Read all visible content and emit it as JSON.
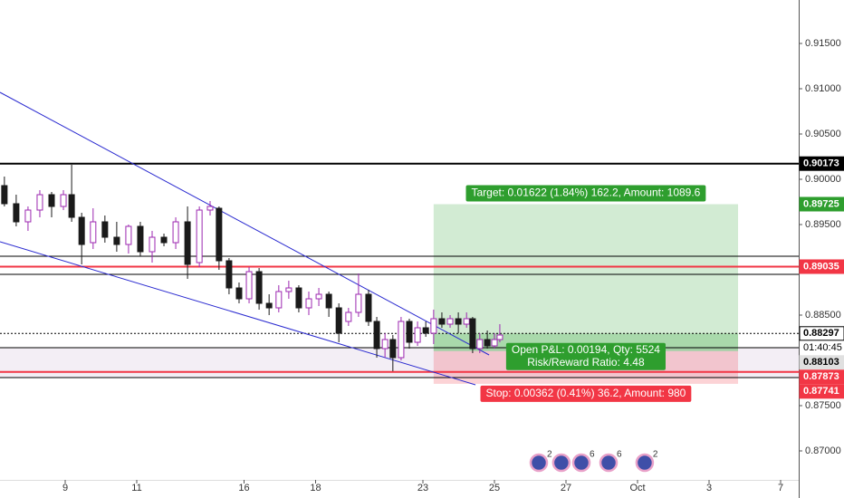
{
  "chart_data": {
    "type": "candlestick",
    "xlim": [
      -1.823,
      20.506
    ],
    "ylim": [
      0.8668,
      0.9198
    ],
    "xticks": [
      {
        "value": 0,
        "label": "9"
      },
      {
        "value": 2,
        "label": "11"
      },
      {
        "value": 5,
        "label": "16"
      },
      {
        "value": 7,
        "label": "18"
      },
      {
        "value": 10,
        "label": "23"
      },
      {
        "value": 12,
        "label": "25"
      },
      {
        "value": 14,
        "label": "27"
      },
      {
        "value": 16,
        "label": "Oct"
      },
      {
        "value": 18,
        "label": "3"
      },
      {
        "value": 20,
        "label": "7"
      }
    ],
    "yticks": [
      {
        "value": 0.87,
        "label": "0.87000"
      },
      {
        "value": 0.875,
        "label": "0.87500"
      },
      {
        "value": 0.885,
        "label": "0.88500"
      },
      {
        "value": 0.895,
        "label": "0.89500"
      },
      {
        "value": 0.9,
        "label": "0.90000"
      },
      {
        "value": 0.905,
        "label": "0.90500"
      },
      {
        "value": 0.91,
        "label": "0.91000"
      },
      {
        "value": 0.915,
        "label": "0.91500"
      }
    ],
    "up_color": "#ffffff",
    "up_border": "#9c27b0",
    "down_color": "#1a1a1a",
    "x": [
      -1.7,
      -1.37,
      -1.04,
      -0.71,
      -0.38,
      -0.05,
      0.18,
      0.46,
      0.78,
      1.11,
      1.44,
      1.77,
      2.1,
      2.43,
      2.76,
      3.09,
      3.42,
      3.75,
      4.05,
      4.3,
      4.58,
      4.86,
      5.14,
      5.42,
      5.7,
      5.97,
      6.25,
      6.53,
      6.81,
      7.09,
      7.37,
      7.65,
      7.92,
      8.2,
      8.48,
      8.71,
      8.94,
      9.16,
      9.39,
      9.62,
      9.85,
      10.08,
      10.3,
      10.53,
      10.76,
      10.99,
      11.22,
      11.39,
      11.59,
      11.8,
      12.0,
      12.15
    ],
    "open": [
      0.8993,
      0.8973,
      0.8953,
      0.8966,
      0.8983,
      0.897,
      0.8983,
      0.8958,
      0.893,
      0.8953,
      0.8936,
      0.8928,
      0.8948,
      0.892,
      0.8936,
      0.893,
      0.8953,
      0.8908,
      0.8966,
      0.8968,
      0.891,
      0.888,
      0.8868,
      0.8898,
      0.8863,
      0.8858,
      0.8876,
      0.888,
      0.8858,
      0.8868,
      0.8873,
      0.8858,
      0.8843,
      0.8853,
      0.8873,
      0.8843,
      0.8813,
      0.8823,
      0.8803,
      0.8843,
      0.882,
      0.8836,
      0.883,
      0.8846,
      0.884,
      0.8846,
      0.884,
      0.8846,
      0.8813,
      0.8823,
      0.8816,
      0.8823
    ],
    "high": [
      0.9003,
      0.8983,
      0.897,
      0.8988,
      0.8986,
      0.8988,
      0.9016,
      0.8963,
      0.8968,
      0.896,
      0.8953,
      0.895,
      0.8953,
      0.8943,
      0.894,
      0.8958,
      0.897,
      0.897,
      0.8976,
      0.897,
      0.8913,
      0.8886,
      0.8903,
      0.8902,
      0.8873,
      0.8883,
      0.8888,
      0.8883,
      0.8876,
      0.888,
      0.8876,
      0.8863,
      0.8858,
      0.8896,
      0.8878,
      0.8848,
      0.883,
      0.8828,
      0.8848,
      0.8846,
      0.8843,
      0.8843,
      0.8856,
      0.8853,
      0.885,
      0.8853,
      0.8853,
      0.8848,
      0.883,
      0.8833,
      0.883,
      0.884
    ],
    "low": [
      0.897,
      0.8948,
      0.8943,
      0.8958,
      0.8958,
      0.8966,
      0.8953,
      0.8906,
      0.8923,
      0.893,
      0.892,
      0.8918,
      0.8915,
      0.8908,
      0.8926,
      0.8923,
      0.889,
      0.8903,
      0.896,
      0.89,
      0.8873,
      0.8863,
      0.8863,
      0.8856,
      0.885,
      0.8853,
      0.8868,
      0.8853,
      0.885,
      0.886,
      0.8848,
      0.882,
      0.8838,
      0.8848,
      0.8838,
      0.8803,
      0.8803,
      0.8788,
      0.88,
      0.8813,
      0.8816,
      0.8826,
      0.8818,
      0.8836,
      0.8836,
      0.883,
      0.8836,
      0.8808,
      0.8808,
      0.8813,
      0.8813,
      0.882
    ],
    "close": [
      0.8973,
      0.8953,
      0.8966,
      0.8983,
      0.897,
      0.8983,
      0.8958,
      0.8928,
      0.8953,
      0.8936,
      0.8928,
      0.8948,
      0.892,
      0.8936,
      0.893,
      0.8953,
      0.8906,
      0.8966,
      0.897,
      0.891,
      0.888,
      0.8868,
      0.8898,
      0.8863,
      0.8858,
      0.8876,
      0.888,
      0.8858,
      0.8868,
      0.8873,
      0.8858,
      0.883,
      0.8853,
      0.8873,
      0.8843,
      0.8813,
      0.8823,
      0.8803,
      0.8843,
      0.882,
      0.8836,
      0.883,
      0.8846,
      0.884,
      0.8846,
      0.884,
      0.8846,
      0.8813,
      0.8823,
      0.8816,
      0.8823,
      0.8828
    ],
    "levels": [
      {
        "value": 0.90173,
        "color": "#000000",
        "width": 2
      },
      {
        "value": 0.8915,
        "color": "#000000",
        "width": 1
      },
      {
        "value": 0.89035,
        "color": "#f23645",
        "width": 2
      },
      {
        "value": 0.8895,
        "color": "#000000",
        "width": 1
      },
      {
        "value": 0.88297,
        "color": "#000000",
        "width": 1,
        "dashed": true
      },
      {
        "value": 0.8814,
        "color": "#000000",
        "width": 1
      },
      {
        "value": 0.87873,
        "color": "#f23645",
        "width": 2
      },
      {
        "value": 0.8781,
        "color": "#000000",
        "width": 1
      }
    ],
    "band": {
      "low": 0.8781,
      "high": 0.8814,
      "color": "#f3eef5"
    },
    "trendlines": [
      {
        "x": [
          -1.823,
          11.85
        ],
        "y": [
          0.9096,
          0.8806
        ],
        "color": "#2a2ad0"
      },
      {
        "x": [
          -1.823,
          11.47
        ],
        "y": [
          0.8931,
          0.8773
        ],
        "color": "#2a2ad0"
      }
    ],
    "position": {
      "x_start": 10.3,
      "x_end": 18.81,
      "entry": 0.88103,
      "target": 0.89725,
      "stop": 0.87741,
      "current": 0.88297,
      "target_label": "Target: 0.01622 (1.84%) 162.2, Amount: 1089.6",
      "pnl_label": "Open P&L: 0.00194, Qty: 5524",
      "ratio_label": "Risk/Reward Ratio: 4.48",
      "stop_label": "Stop: 0.00362 (0.41%) 36.2, Amount: 980"
    },
    "price_labels": [
      {
        "value": 0.90173,
        "label": "0.90173",
        "color": "#000000",
        "text_color": "#ffffff"
      },
      {
        "value": 0.89725,
        "label": "0.89725",
        "color": "#2e9e2e",
        "text_color": "#ffffff"
      },
      {
        "value": 0.89035,
        "label": "0.89035",
        "color": "#f23645",
        "text_color": "#ffffff"
      },
      {
        "value": 0.88297,
        "label": "0.88297",
        "color": "#ffffff",
        "text_color": "#000000"
      },
      {
        "value": 0.88103,
        "label": "0.88103",
        "color": "#e0e0e0",
        "text_color": "#000000"
      },
      {
        "value": 0.87873,
        "label": "0.87873",
        "color": "#f23645",
        "text_color": "#ffffff"
      },
      {
        "value": 0.87741,
        "label": "0.87741",
        "color": "#f23645",
        "text_color": "#ffffff"
      }
    ],
    "countdown": "01:40:45",
    "events": [
      {
        "x": 13.24,
        "badge": "2"
      },
      {
        "x": 13.87
      },
      {
        "x": 14.43,
        "badge": "6"
      },
      {
        "x": 15.19,
        "badge": "6"
      },
      {
        "x": 16.2,
        "badge": "2"
      }
    ]
  }
}
